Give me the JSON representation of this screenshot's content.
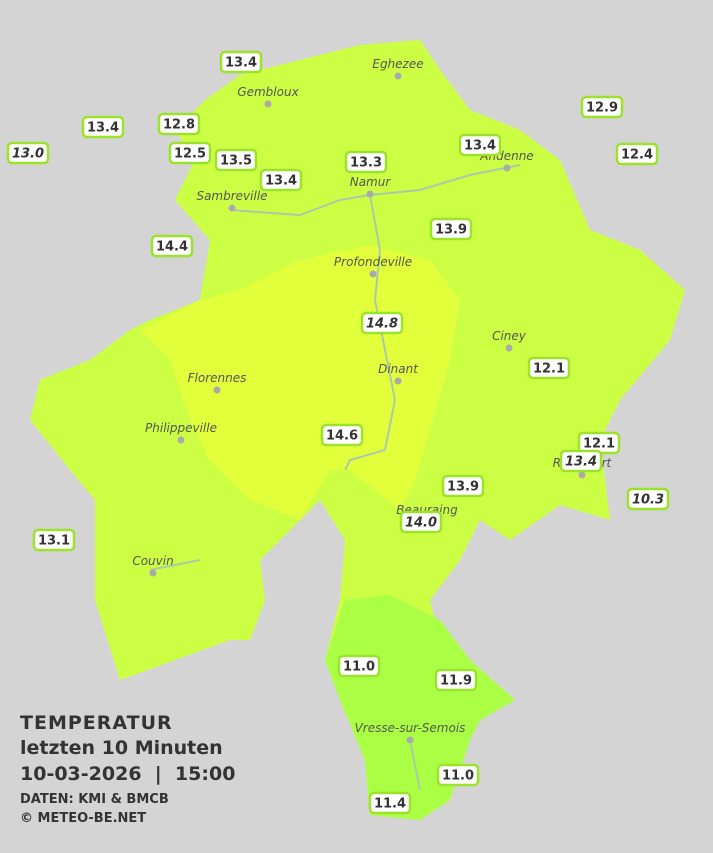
{
  "title": "TEMPERATUR",
  "subtitle": "letzten 10 Minuten",
  "datetime": "10-03-2026  |  15:00",
  "source": "DATEN: KMI & BMCB",
  "copyright": "© METEO-BE.NET",
  "cities": [
    "Eghezee",
    "Gembloux",
    "Andenne",
    "Namur",
    "Sambreville",
    "Profondeville",
    "Ciney",
    "Dinant",
    "Florennes",
    "Philippeville",
    "Rochefort",
    "Beauraing",
    "Couvin",
    "Vresse-sur-Semois"
  ],
  "stations": [
    {
      "label": "13.4"
    },
    {
      "label": "13.4"
    },
    {
      "label": "12.8"
    },
    {
      "label": "13.0",
      "italic": true
    },
    {
      "label": "12.5"
    },
    {
      "label": "13.5"
    },
    {
      "label": "13.4"
    },
    {
      "label": "13.3"
    },
    {
      "label": "13.4"
    },
    {
      "label": "12.9"
    },
    {
      "label": "12.4"
    },
    {
      "label": "13.9"
    },
    {
      "label": "14.4"
    },
    {
      "label": "14.8",
      "italic": true
    },
    {
      "label": "12.1"
    },
    {
      "label": "14.6"
    },
    {
      "label": "12.1"
    },
    {
      "label": "13.4",
      "italic": true
    },
    {
      "label": "10.3",
      "italic": true
    },
    {
      "label": "13.9"
    },
    {
      "label": "14.0",
      "italic": true
    },
    {
      "label": "13.1"
    },
    {
      "label": "11.0"
    },
    {
      "label": "11.9"
    },
    {
      "label": "11.0"
    },
    {
      "label": "11.4"
    }
  ]
}
